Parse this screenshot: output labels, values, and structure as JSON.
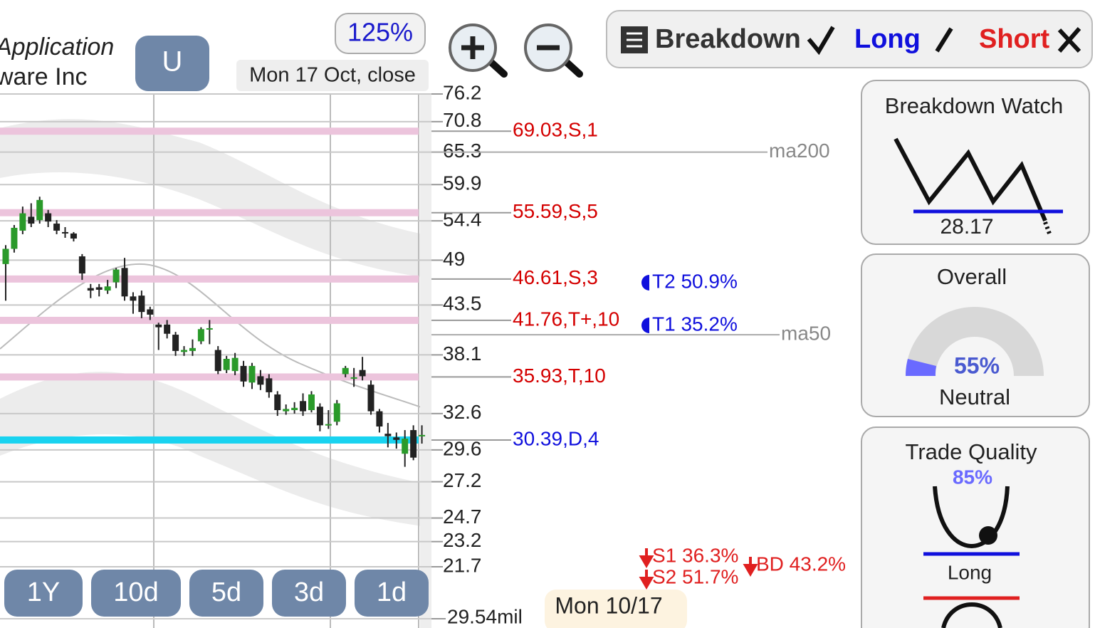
{
  "header": {
    "company_line1": "Application",
    "company_line2": "ware Inc",
    "symbol": "U",
    "zoom": "125%",
    "date": "Mon 17 Oct, close"
  },
  "chart_data": {
    "type": "candlestick",
    "log_scale": true,
    "grid": true,
    "ylim": [
      21.7,
      76.2
    ],
    "yticks": [
      76.2,
      70.8,
      65.3,
      59.9,
      54.4,
      49,
      43.5,
      38.1,
      32.6,
      29.6,
      27.2,
      24.7,
      23.2,
      21.7
    ],
    "up_color": "#2a9a2a",
    "down_color": "#222222",
    "open": [
      48.5,
      50.5,
      53,
      55,
      54.5,
      55.5,
      54,
      52.8,
      52.6,
      49.5,
      45.5,
      45.6,
      45.2,
      46.2,
      48,
      44.5,
      44.6,
      43,
      41.3,
      41.3,
      40.2,
      38.4,
      38.5,
      39.5,
      40.8,
      38.6,
      36.6,
      36.5,
      37,
      35.4,
      36,
      35.8,
      34.3,
      32.8,
      32.9,
      33.7,
      32.9,
      33.2,
      31.6,
      31.9,
      36.2,
      35.8,
      36.6,
      35.2,
      32.8,
      30.9,
      30.6,
      29.3,
      31.2,
      30.7
    ],
    "close": [
      50.5,
      53.4,
      55.5,
      54,
      57.5,
      54.3,
      53,
      52.6,
      51.9,
      47.3,
      45.2,
      45.3,
      45.7,
      47.8,
      44.5,
      44,
      42.7,
      42.4,
      41,
      40.3,
      38.5,
      38.6,
      38.8,
      40.8,
      40.9,
      36.5,
      37.7,
      37.8,
      35.5,
      37,
      35.2,
      34.5,
      32.9,
      33,
      33.1,
      32.8,
      34.3,
      31.6,
      31.7,
      33.5,
      36.8,
      35.9,
      36,
      32.8,
      31.5,
      30.7,
      30.4,
      30.5,
      29,
      30.8
    ],
    "high": [
      51,
      53.8,
      56.5,
      57,
      58,
      56,
      54.5,
      53.5,
      52.8,
      49.8,
      46,
      46,
      46.5,
      48,
      49.3,
      45,
      45.2,
      43.3,
      41.5,
      41.8,
      40.5,
      39,
      39.7,
      41,
      41.8,
      39,
      38,
      38.3,
      37.5,
      37.3,
      36.6,
      36.2,
      34.6,
      33.4,
      33.6,
      34.4,
      34.6,
      33.5,
      32.9,
      33.8,
      37,
      36.8,
      37.9,
      35.6,
      33,
      31.8,
      31,
      31.2,
      31.6,
      31.6
    ],
    "low": [
      44,
      50,
      52.5,
      53.5,
      54,
      53.5,
      52.5,
      52,
      51.5,
      46.5,
      44.3,
      44.5,
      44.8,
      45.5,
      44,
      42.5,
      42,
      41.8,
      38.6,
      39.8,
      38,
      38,
      38,
      39.2,
      39.2,
      36.2,
      36.3,
      36.1,
      35,
      34.8,
      34.7,
      34,
      32.4,
      32.5,
      32.6,
      32.4,
      32.7,
      31.1,
      31.3,
      31.6,
      35.9,
      35,
      35.6,
      32.5,
      31,
      29.8,
      29.7,
      28.3,
      28.8,
      30.1
    ],
    "levels": [
      {
        "value": 69.03,
        "label": "69.03,S,1",
        "color": "#d40000",
        "band_color": "#ecc4dc"
      },
      {
        "value": 55.59,
        "label": "55.59,S,5",
        "color": "#d40000",
        "band_color": "#ecc4dc"
      },
      {
        "value": 46.61,
        "label": "46.61,S,3",
        "color": "#d40000",
        "band_color": "#ecc4dc"
      },
      {
        "value": 41.76,
        "label": "41.76,T+,10",
        "color": "#d40000",
        "band_color": "#ecc4dc"
      },
      {
        "value": 35.93,
        "label": "35.93,T,10",
        "color": "#d40000",
        "band_color": "#ecc4dc"
      },
      {
        "value": 30.39,
        "label": "30.39,D,4",
        "color": "#1010dd",
        "band_color": "#19d3f0"
      }
    ],
    "moving_averages": [
      {
        "name": "ma200",
        "value": 65.3
      },
      {
        "name": "ma50",
        "value": 40.2
      }
    ],
    "targets": [
      "T2 50.9%",
      "T1 35.2%"
    ],
    "risks": [
      "S1 36.3%",
      "S2 51.7%",
      "BD 43.2%"
    ],
    "volume_label": "29.54mil"
  },
  "range_buttons": [
    "1Y",
    "10d",
    "5d",
    "3d",
    "1d"
  ],
  "footer_date": "Mon 10/17",
  "toolbar": {
    "breakdown": "Breakdown",
    "long": "Long",
    "short": "Short"
  },
  "panels": {
    "breakdown_watch": {
      "title": "Breakdown Watch",
      "value": "28.17"
    },
    "overall": {
      "title": "Overall",
      "score": "55%",
      "rating": "Neutral"
    },
    "trade_quality": {
      "title": "Trade Quality",
      "score": "85%",
      "rating": "Long"
    }
  }
}
